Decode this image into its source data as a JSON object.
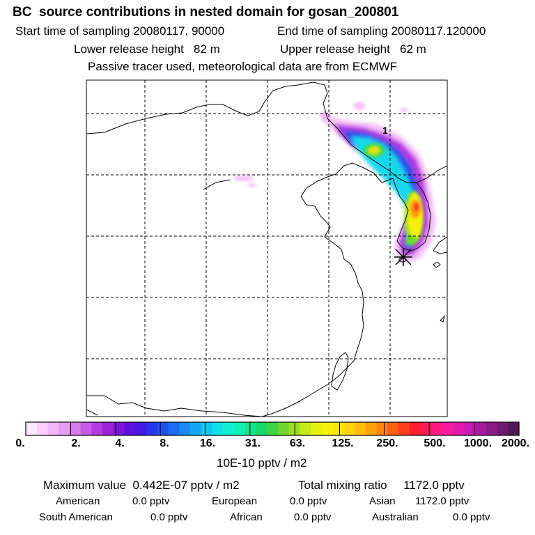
{
  "header": {
    "title": "BC  source contributions in nested domain for gosan_200801",
    "start_label": "Start time of sampling 20080117. 90000",
    "end_label": "End time of sampling 20080117.120000",
    "lower_label": "Lower release height   82 m",
    "upper_label": "Upper release height   62 m",
    "note": "Passive tracer used, meteorological data are from ECMWF"
  },
  "map": {
    "marker_label": "1"
  },
  "colorbar": {
    "ticks": [
      "0.",
      "2.",
      "4.",
      "8.",
      "16.",
      "31.",
      "63.",
      "125.",
      "250.",
      "500.",
      "1000.",
      "2000."
    ],
    "unit": "10E-10 pptv / m2",
    "colors": [
      "#ffe8ff",
      "#ffd0ff",
      "#f2b6f6",
      "#e69cf2",
      "#d57ae9",
      "#c65ae6",
      "#b43ae0",
      "#9e22dc",
      "#7c14d8",
      "#5c12d8",
      "#4218e0",
      "#2a34e8",
      "#1e52ee",
      "#1a6ef2",
      "#168cf4",
      "#14a8f4",
      "#10c8f2",
      "#0ce0e8",
      "#0ef0d0",
      "#10f0b4",
      "#12e48c",
      "#1ad868",
      "#3cd444",
      "#6ed62e",
      "#9ae020",
      "#c4ea18",
      "#e4f010",
      "#f6f20c",
      "#fde60a",
      "#ffd40a",
      "#ffbe0a",
      "#ffa20a",
      "#ff8410",
      "#ff6014",
      "#ff3c1c",
      "#ff1e2a",
      "#ff1a58",
      "#ff1a80",
      "#f41aa0",
      "#e01ab0",
      "#c61ab0",
      "#a81a9e",
      "#8a1a86",
      "#6e1a6e",
      "#521a56"
    ]
  },
  "footer": {
    "max_label": "Maximum value  0.442E-07 pptv / m2",
    "total_label": "Total mixing ratio     1172.0 pptv",
    "regions": [
      {
        "name": "American",
        "value": "0.0 pptv"
      },
      {
        "name": "European",
        "value": "0.0 pptv"
      },
      {
        "name": "Asian",
        "value": "1172.0 pptv"
      },
      {
        "name": "South American",
        "value": "0.0 pptv"
      },
      {
        "name": "African",
        "value": "0.0 pptv"
      },
      {
        "name": "Australian",
        "value": "0.0 pptv"
      }
    ]
  }
}
